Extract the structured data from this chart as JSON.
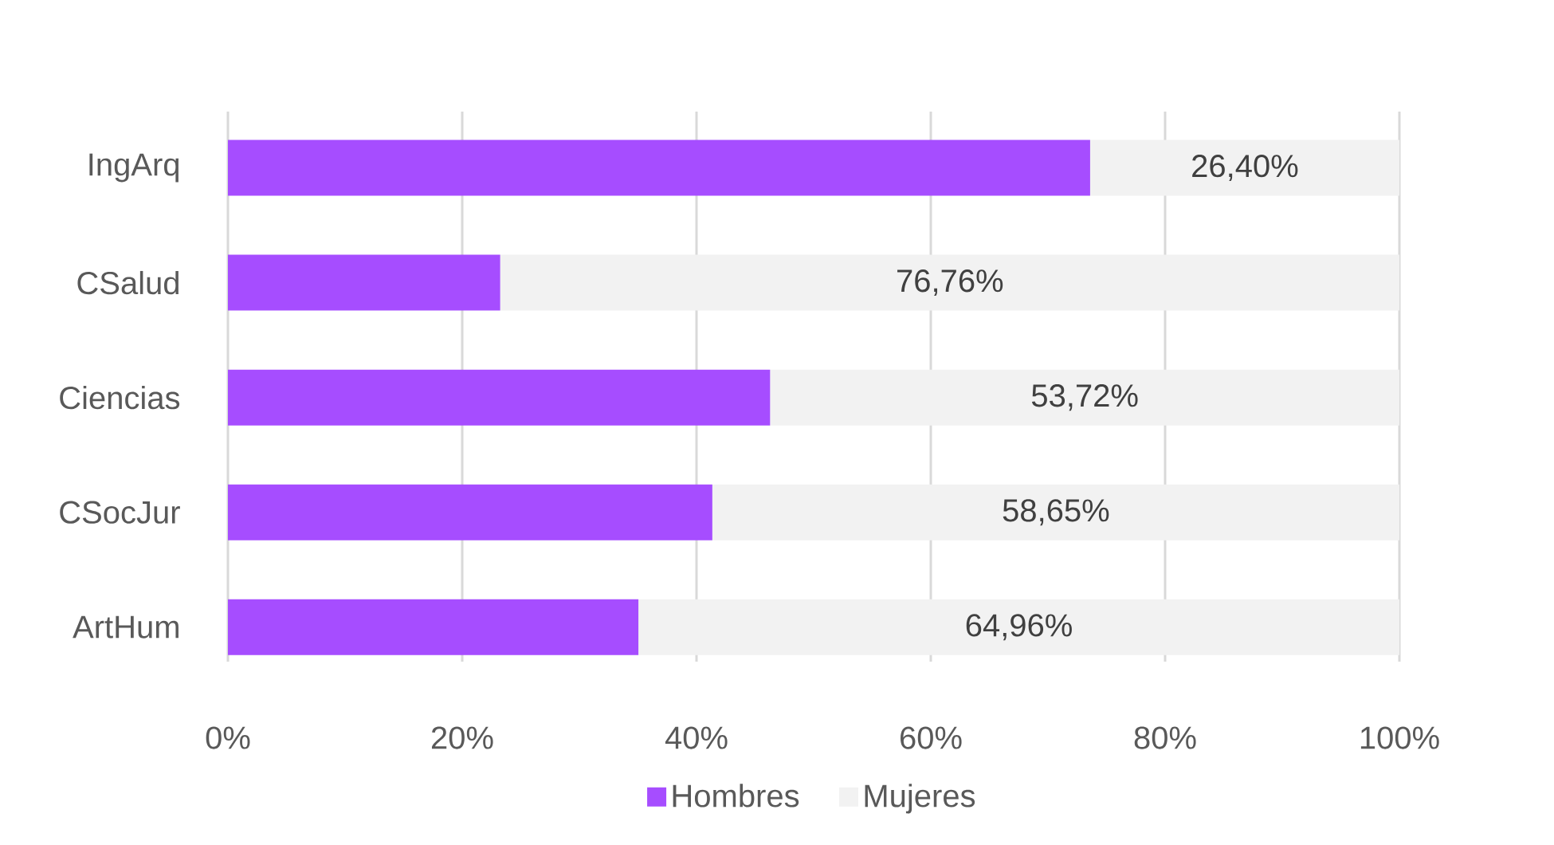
{
  "chart_data": {
    "type": "bar",
    "orientation": "horizontal",
    "stacked": true,
    "categories": [
      "IngArq",
      "CSalud",
      "Ciencias",
      "CSocJur",
      "ArtHum"
    ],
    "series": [
      {
        "name": "Hombres",
        "color": "#a64dff",
        "values": [
          73.6,
          23.24,
          46.28,
          41.35,
          35.04
        ]
      },
      {
        "name": "Mujeres",
        "color": "#f2f2f2",
        "values": [
          26.4,
          76.76,
          53.72,
          58.65,
          64.96
        ],
        "value_labels": [
          "26,40%",
          "76,76%",
          "53,72%",
          "58,65%",
          "64,96%"
        ]
      }
    ],
    "xlim": [
      0,
      100
    ],
    "xticks": [
      {
        "value": 0,
        "label": "0%"
      },
      {
        "value": 20,
        "label": "20%"
      },
      {
        "value": 40,
        "label": "40%"
      },
      {
        "value": 60,
        "label": "60%"
      },
      {
        "value": 80,
        "label": "80%"
      },
      {
        "value": 100,
        "label": "100%"
      }
    ],
    "grid": "x",
    "legend": "bottom"
  }
}
